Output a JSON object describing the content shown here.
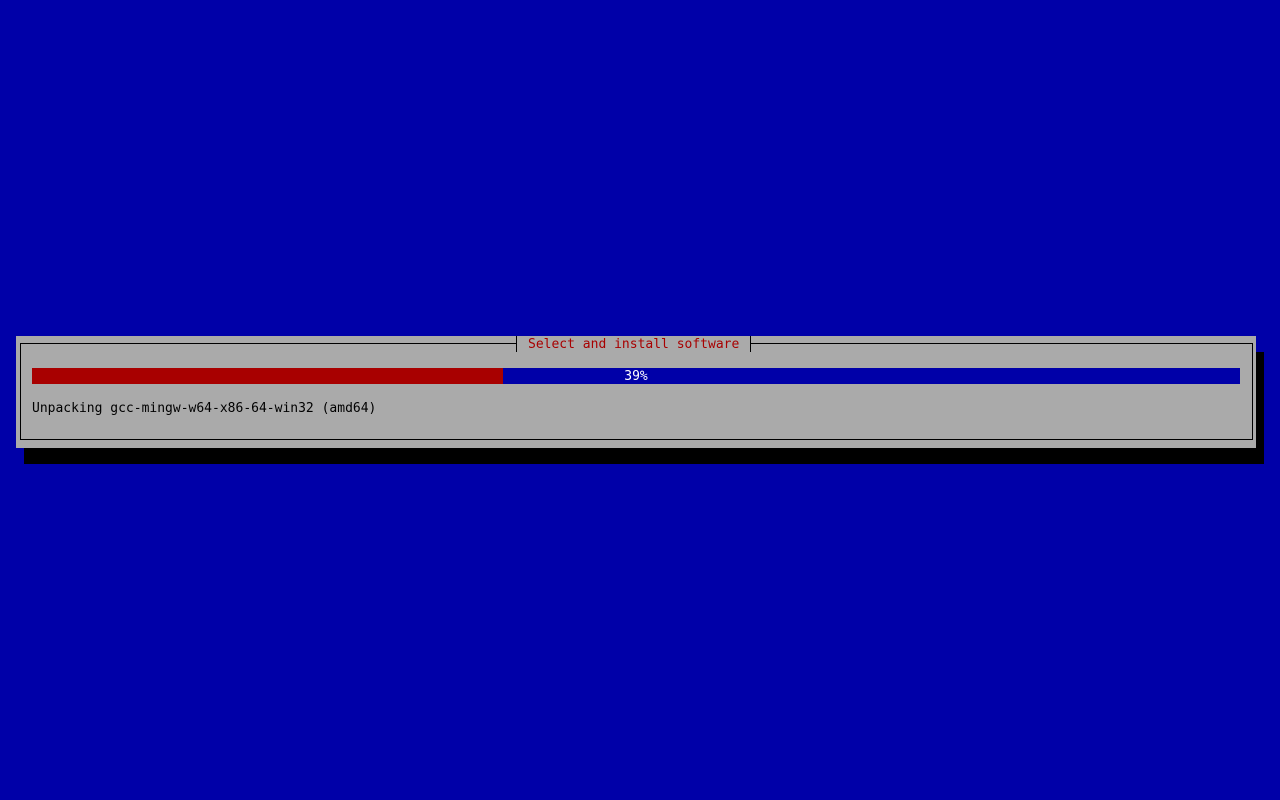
{
  "dialog": {
    "title": "Select and install software",
    "progress": {
      "percent": 39,
      "label": "39%"
    },
    "status": "Unpacking gcc-mingw-w64-x86-64-win32 (amd64)"
  },
  "colors": {
    "background": "#0000a8",
    "dialog": "#aaaaaa",
    "progress_fill": "#a80000",
    "title_text": "#a80000"
  }
}
